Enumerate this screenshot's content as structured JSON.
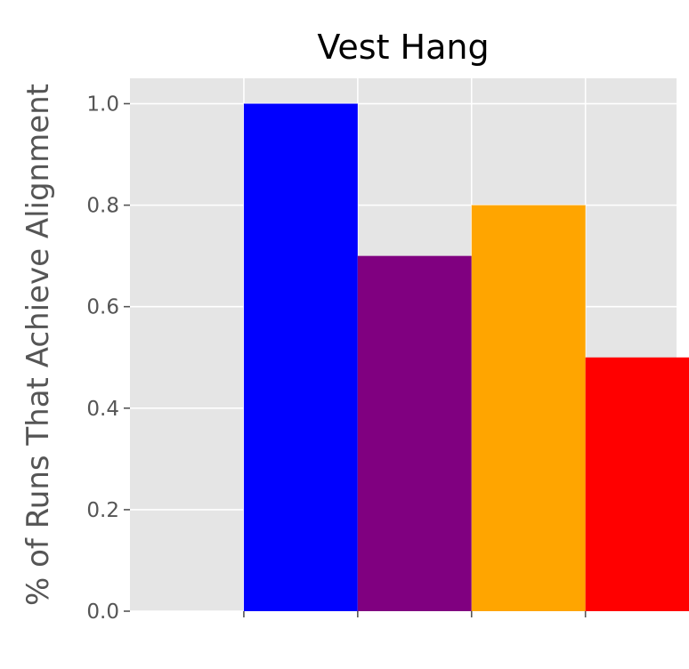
{
  "chart_data": {
    "type": "bar",
    "title": "Vest Hang",
    "xlabel": "",
    "ylabel": "% of Runs That Achieve Alignment",
    "categories": [
      "",
      "",
      "",
      ""
    ],
    "values": [
      1.0,
      0.7,
      0.8,
      0.5
    ],
    "colors": [
      "#0000ff",
      "#800080",
      "#ffa500",
      "#ff0000"
    ],
    "ylim": [
      0,
      1.05
    ],
    "xlim": [
      0,
      4.8
    ],
    "yticks": [
      0.0,
      0.2,
      0.4,
      0.6,
      0.8,
      1.0
    ],
    "ytick_labels": [
      "0.0",
      "0.2",
      "0.4",
      "0.6",
      "0.8",
      "1.0"
    ],
    "xticks": [
      1,
      2,
      3,
      4
    ],
    "vertical_grid": [
      1,
      2,
      3,
      4
    ],
    "bar_positions": [
      1.5,
      2.5,
      3.5,
      4.5
    ],
    "bar_width": 1.0,
    "grid": true,
    "style": "ggplot",
    "plot_background": "#e5e5e5",
    "grid_color": "#ffffff"
  }
}
